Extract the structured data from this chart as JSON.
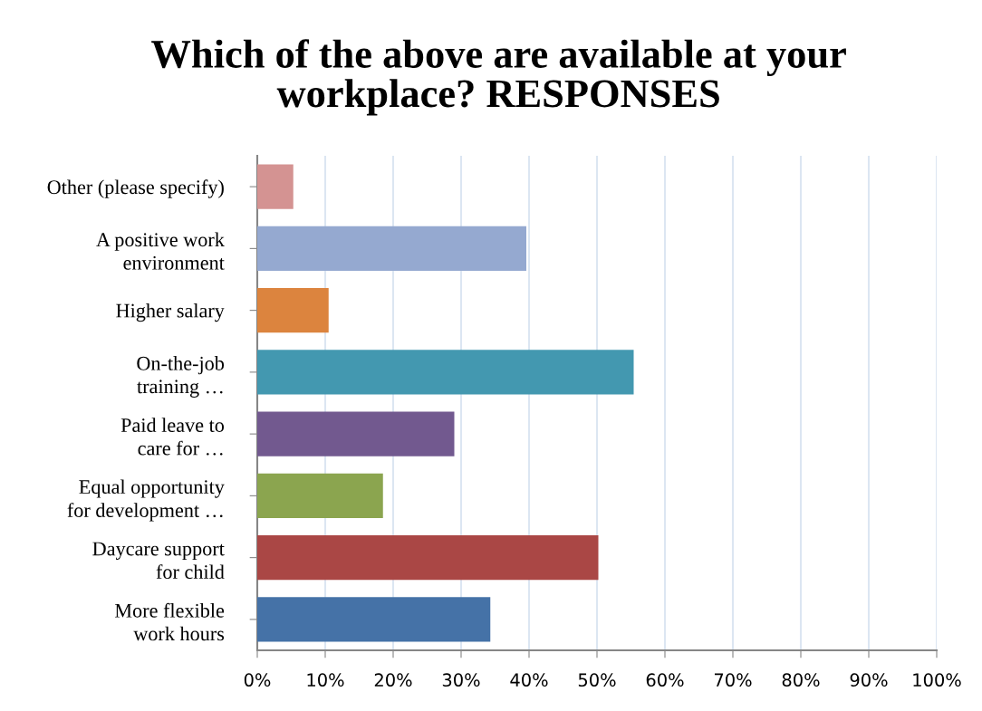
{
  "chart_data": {
    "type": "bar",
    "orientation": "horizontal",
    "title": "Which of the above are available at your\nworkplace? RESPONSES",
    "categories": [
      "Other (please specify)",
      "A positive work\nenvironment",
      "Higher salary",
      "On-the-job\ntraining …",
      "Paid leave to\ncare for …",
      "Equal opportunity\nfor development …",
      "Daycare support\nfor child",
      "More flexible\nwork hours"
    ],
    "values": [
      5.3,
      39.6,
      10.5,
      55.4,
      29.0,
      18.5,
      50.2,
      34.3
    ],
    "colors": [
      "#d49392",
      "#95a9d0",
      "#dc843e",
      "#4398b0",
      "#72598f",
      "#8ba54f",
      "#aa4745",
      "#4572a7"
    ],
    "xlim": [
      0,
      100
    ],
    "xticks": [
      {
        "value": 0,
        "label": "0%"
      },
      {
        "value": 10,
        "label": "10%"
      },
      {
        "value": 20,
        "label": "20%"
      },
      {
        "value": 30,
        "label": "30%"
      },
      {
        "value": 40,
        "label": "40%"
      },
      {
        "value": 50,
        "label": "50%"
      },
      {
        "value": 60,
        "label": "60%"
      },
      {
        "value": 70,
        "label": "70%"
      },
      {
        "value": 80,
        "label": "80%"
      },
      {
        "value": 90,
        "label": "90%"
      },
      {
        "value": 100,
        "label": "100%"
      }
    ],
    "grid": "x",
    "legend": false
  }
}
